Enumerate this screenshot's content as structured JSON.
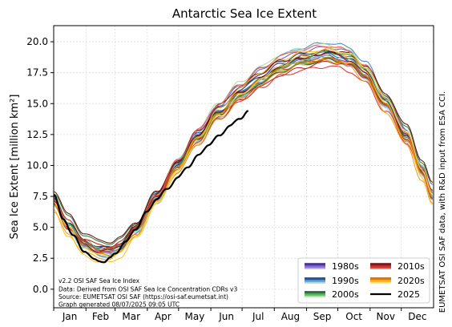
{
  "chart_data": {
    "type": "line",
    "title": "Antarctic Sea Ice Extent",
    "ylabel": "Sea Ice Extent [million km²]",
    "xlabel": "",
    "ylim": [
      -1.5,
      21.3
    ],
    "yticks": [
      "0.0",
      "2.5",
      "5.0",
      "7.5",
      "10.0",
      "12.5",
      "15.0",
      "17.5",
      "20.0"
    ],
    "months": [
      "Jan",
      "Feb",
      "Mar",
      "Apr",
      "May",
      "Jun",
      "Jul",
      "Aug",
      "Sep",
      "Oct",
      "Nov",
      "Dec"
    ],
    "grid": true,
    "legend_position": "lower-right",
    "side_note": "EUMETSAT OSI SAF data, with R&D input from ESA CCI.",
    "info_lines": [
      "v2.2 OSI SAF Sea Ice Index",
      "Data: Derived from OSI SAF Sea Ice Concentration CDRs v3",
      "Source: EUMETSAT OSI SAF (https://osi-saf.eumetsat.int)",
      "Graph generated 08/07/2025 09:05 UTC"
    ],
    "decades": [
      {
        "name": "1980s",
        "colors": [
          "#2f1a7a",
          "#4b2fa0",
          "#6a4fc4",
          "#8b73d6",
          "#b3a3e6"
        ]
      },
      {
        "name": "1990s",
        "colors": [
          "#0b2f5c",
          "#1d5a96",
          "#3a82c4",
          "#6aaedc",
          "#a6d4ee"
        ]
      },
      {
        "name": "2000s",
        "colors": [
          "#0a4d1e",
          "#1f7a35",
          "#3aa04e",
          "#6cc070",
          "#a8dc9e"
        ]
      },
      {
        "name": "2010s",
        "colors": [
          "#5c0000",
          "#8b0a0a",
          "#b31414",
          "#d42a2a",
          "#ee5a4a"
        ]
      },
      {
        "name": "2020s",
        "colors": [
          "#b35900",
          "#e07a00",
          "#f59a00",
          "#fbbd1a",
          "#fde05a"
        ]
      }
    ],
    "current_year": {
      "name": "2025",
      "color": "#000000",
      "doy": [
        1,
        10,
        20,
        30,
        40,
        45,
        50,
        55,
        60,
        70,
        80,
        90,
        100,
        110,
        120,
        130,
        140,
        150,
        160,
        170,
        180,
        188
      ],
      "values": [
        7.6,
        5.7,
        4.3,
        3.1,
        2.4,
        2.3,
        2.2,
        2.5,
        2.9,
        3.8,
        4.9,
        6.2,
        7.3,
        8.1,
        9.0,
        9.9,
        10.8,
        11.7,
        12.4,
        13.2,
        13.8,
        14.4
      ]
    },
    "typical_cycle": {
      "doy": [
        1,
        15,
        30,
        45,
        55,
        65,
        80,
        100,
        120,
        140,
        160,
        180,
        200,
        220,
        240,
        255,
        265,
        275,
        285,
        300,
        320,
        340,
        355,
        365
      ],
      "values": [
        7.0,
        5.0,
        3.6,
        3.0,
        3.0,
        3.4,
        4.8,
        7.4,
        10.0,
        12.4,
        14.4,
        15.9,
        17.1,
        18.1,
        18.6,
        18.85,
        18.95,
        18.8,
        18.5,
        17.5,
        15.0,
        12.3,
        9.5,
        7.5
      ]
    }
  }
}
